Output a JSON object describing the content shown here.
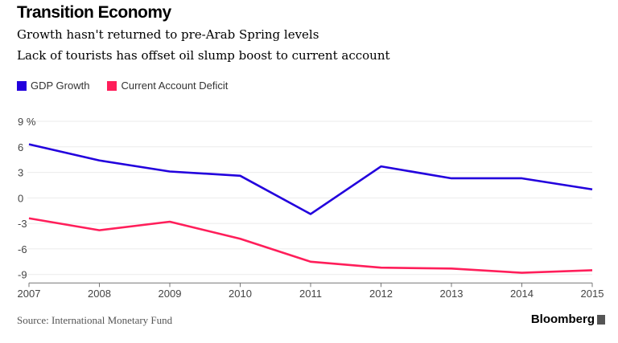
{
  "chart_data": {
    "type": "line",
    "title": "Transition Economy",
    "subtitle": [
      "Growth hasn't returned to pre-Arab Spring levels",
      "Lack of tourists has offset oil slump boost to current account"
    ],
    "x": [
      "2007",
      "2008",
      "2009",
      "2010",
      "2011",
      "2012",
      "2013",
      "2014",
      "2015"
    ],
    "series": [
      {
        "name": "GDP Growth",
        "color": "#2200dd",
        "values": [
          6.3,
          4.4,
          3.1,
          2.6,
          -1.9,
          3.7,
          2.3,
          2.3,
          1.0
        ]
      },
      {
        "name": "Current Account Deficit",
        "color": "#ff1e5a",
        "values": [
          -2.4,
          -3.8,
          -2.8,
          -4.8,
          -7.5,
          -8.2,
          -8.3,
          -8.8,
          -8.5
        ]
      }
    ],
    "yticks": [
      9,
      6,
      3,
      0,
      -3,
      -6,
      -9
    ],
    "ytick_labels": [
      "9 %",
      "6",
      "3",
      "0",
      "-3",
      "-6",
      "-9"
    ],
    "ylim": [
      -10,
      9
    ],
    "xlabel": "",
    "ylabel": "%",
    "grid": true,
    "legend": "top-left"
  },
  "source": "Source: International Monetary Fund",
  "brand": "Bloomberg"
}
